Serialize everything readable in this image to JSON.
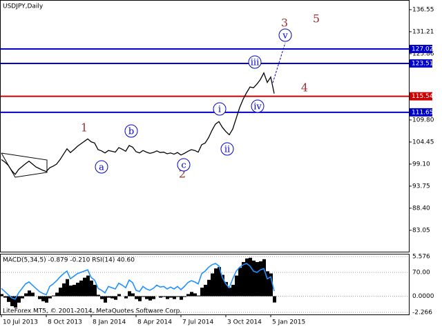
{
  "chart_data": [
    {
      "type": "line",
      "title": "USDJPY,Daily",
      "categories": [
        "10 Jul 2013",
        null,
        null,
        null,
        null,
        null,
        null,
        null,
        null,
        null,
        null,
        null,
        null,
        "8 Oct 2013",
        null,
        null,
        null,
        null,
        null,
        null,
        null,
        null,
        null,
        null,
        null,
        null,
        "8 Jan 2014",
        null,
        null,
        null,
        null,
        null,
        null,
        null,
        null,
        null,
        null,
        null,
        null,
        "8 Apr 2014",
        null,
        null,
        null,
        null,
        null,
        null,
        null,
        null,
        null,
        null,
        null,
        null,
        "7 Jul 2014",
        null,
        null,
        null,
        null,
        null,
        null,
        null,
        null,
        null,
        null,
        null,
        null,
        "3 Oct 2014",
        null,
        null,
        null,
        null,
        null,
        null,
        null,
        null,
        null,
        null,
        null,
        null,
        "5 Jan 2015",
        null
      ],
      "series": [
        {
          "name": "USDJPY",
          "color": "#000000",
          "values": [
            100.2,
            99.6,
            98.8,
            97.5,
            96.6,
            97.8,
            98.5,
            99.2,
            99.8,
            99.1,
            98.4,
            98.0,
            97.6,
            97.3,
            98.2,
            98.6,
            99.1,
            100.2,
            101.5,
            102.8,
            101.9,
            102.6,
            103.4,
            104.0,
            104.6,
            105.2,
            104.5,
            104.2,
            102.6,
            102.3,
            101.8,
            102.4,
            102.2,
            102.0,
            103.1,
            102.7,
            102.2,
            103.6,
            103.2,
            102.1,
            101.8,
            102.4,
            102.0,
            101.7,
            101.9,
            102.3,
            101.9,
            102.0,
            101.6,
            101.8,
            101.5,
            101.9,
            101.3,
            101.7,
            102.2,
            102.6,
            102.4,
            102.0,
            103.8,
            104.2,
            105.5,
            107.3,
            108.8,
            109.4,
            108.0,
            107.0,
            106.2,
            107.6,
            110.2,
            112.8,
            114.8,
            116.4,
            117.8,
            117.6,
            118.5,
            119.6,
            121.2,
            118.9,
            120.2,
            116.2
          ]
        }
      ],
      "ylim": [
        77.85,
        138.89
      ],
      "yticks": [
        136.55,
        131.21,
        125.86,
        {
          "value": 109.8,
          "label": "109.80"
        },
        104.45,
        {
          "value": 99.1,
          "label": "99.10"
        },
        93.75,
        {
          "value": 88.4,
          "label": "88.40"
        },
        83.05
      ],
      "levels": [
        {
          "value": 127.02,
          "color": "#0000cc"
        },
        {
          "value": 123.51,
          "color": "#0000cc"
        },
        {
          "value": 115.54,
          "color": "#cc0000"
        },
        {
          "value": 111.65,
          "color": "#0000cc"
        }
      ],
      "annotations": [
        {
          "text": "1",
          "color": "#993333",
          "circled": false
        },
        {
          "text": "2",
          "color": "#993333",
          "circled": false
        },
        {
          "text": "3",
          "color": "#993333",
          "circled": false
        },
        {
          "text": "4",
          "color": "#993333",
          "circled": false
        },
        {
          "text": "5",
          "color": "#993333",
          "circled": false
        },
        {
          "text": "a",
          "color": "#0000cc",
          "circled": true
        },
        {
          "text": "b",
          "color": "#0000cc",
          "circled": true
        },
        {
          "text": "c",
          "color": "#0000cc",
          "circled": true
        },
        {
          "text": "i",
          "color": "#0000cc",
          "circled": true
        },
        {
          "text": "ii",
          "color": "#0000cc",
          "circled": true
        },
        {
          "text": "iii",
          "color": "#0000cc",
          "circled": true
        },
        {
          "text": "iv",
          "color": "#0000cc",
          "circled": true
        },
        {
          "text": "v",
          "color": "#0000cc",
          "circled": true
        }
      ]
    },
    {
      "type": "bar",
      "title": "MACD(5,34,5) -0.879 -0.210 RSI(14) 40.60",
      "series": [
        {
          "name": "MACD",
          "type": "bar",
          "color": "#000000",
          "values": [
            0.3,
            -0.2,
            -0.8,
            -1.4,
            -1.6,
            -0.9,
            -0.3,
            0.4,
            0.8,
            0.5,
            0.0,
            -0.4,
            -0.7,
            -0.9,
            -0.3,
            0.1,
            0.5,
            1.2,
            1.8,
            2.4,
            1.5,
            1.6,
            1.9,
            2.2,
            2.6,
            2.9,
            2.2,
            1.6,
            0.2,
            -0.4,
            -0.9,
            -0.2,
            -0.3,
            -0.5,
            0.3,
            0.0,
            -0.3,
            0.7,
            0.4,
            -0.4,
            -0.7,
            -0.1,
            -0.4,
            -0.6,
            -0.4,
            0.0,
            -0.2,
            -0.1,
            -0.4,
            -0.2,
            -0.4,
            -0.1,
            -0.5,
            -0.1,
            0.3,
            0.6,
            0.4,
            0.1,
            1.2,
            1.6,
            2.3,
            3.2,
            3.9,
            4.1,
            3.0,
            2.0,
            1.2,
            1.6,
            2.9,
            4.0,
            4.8,
            5.3,
            5.4,
            5.0,
            4.8,
            4.9,
            5.2,
            3.5,
            3.2,
            -0.879
          ]
        },
        {
          "name": "RSI(14)",
          "type": "line",
          "axis": "y2",
          "color": "#1e90ff",
          "values": [
            45,
            40,
            35,
            30,
            28,
            38,
            45,
            52,
            55,
            50,
            45,
            40,
            37,
            35,
            48,
            52,
            57,
            63,
            68,
            72,
            60,
            64,
            68,
            70,
            72,
            74,
            62,
            58,
            45,
            42,
            38,
            48,
            46,
            44,
            53,
            50,
            46,
            58,
            54,
            42,
            40,
            48,
            44,
            42,
            45,
            50,
            47,
            48,
            44,
            47,
            44,
            48,
            43,
            48,
            54,
            57,
            55,
            52,
            68,
            72,
            78,
            82,
            84,
            80,
            62,
            52,
            46,
            60,
            72,
            78,
            82,
            84,
            80,
            72,
            70,
            74,
            76,
            60,
            63,
            40.6
          ]
        }
      ],
      "ylim": [
        -2.56,
        5.96
      ],
      "yticks": [
        5.576,
        {
          "value": 0,
          "label": "0.0000"
        },
        -2.266
      ],
      "y2lim": [
        4.1,
        99.2
      ],
      "y2ticks": [
        {
          "value": 70,
          "label": "70.00"
        }
      ]
    }
  ],
  "footer": "LiteForex MT5, © 2001-2014, MetaQuotes Software Corp."
}
